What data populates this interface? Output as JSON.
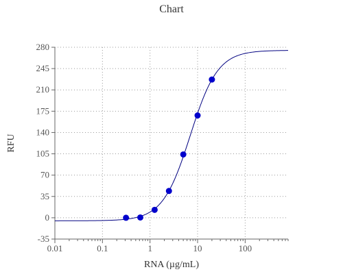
{
  "chart_data": {
    "type": "scatter",
    "title": "Chart",
    "xlabel": "RNA (µg/mL)",
    "ylabel": "RFU",
    "x_scale": "log",
    "xlim": [
      0.01,
      800
    ],
    "ylim": [
      -35,
      280
    ],
    "x_ticks": [
      0.01,
      0.1,
      1,
      10,
      100
    ],
    "x_tick_labels": [
      "0.01",
      "0.1",
      "1",
      "10",
      "100"
    ],
    "y_ticks": [
      -35,
      0,
      35,
      70,
      105,
      140,
      175,
      210,
      245,
      280
    ],
    "y_tick_labels": [
      "-35",
      "0",
      "35",
      "70",
      "105",
      "140",
      "175",
      "210",
      "245",
      "280"
    ],
    "grid": true,
    "series": [
      {
        "type": "scatter",
        "color": "#0000cc",
        "points": [
          {
            "x": 0.3125,
            "y": 0
          },
          {
            "x": 0.625,
            "y": 0.5
          },
          {
            "x": 1.25,
            "y": 13
          },
          {
            "x": 2.5,
            "y": 44
          },
          {
            "x": 5,
            "y": 104
          },
          {
            "x": 10,
            "y": 168
          },
          {
            "x": 20,
            "y": 227
          }
        ]
      },
      {
        "type": "line",
        "color": "#000080",
        "fit": {
          "model": "4PL",
          "bottom": -5,
          "top": 275,
          "ec50": 7,
          "hill": 1.5
        }
      }
    ]
  }
}
